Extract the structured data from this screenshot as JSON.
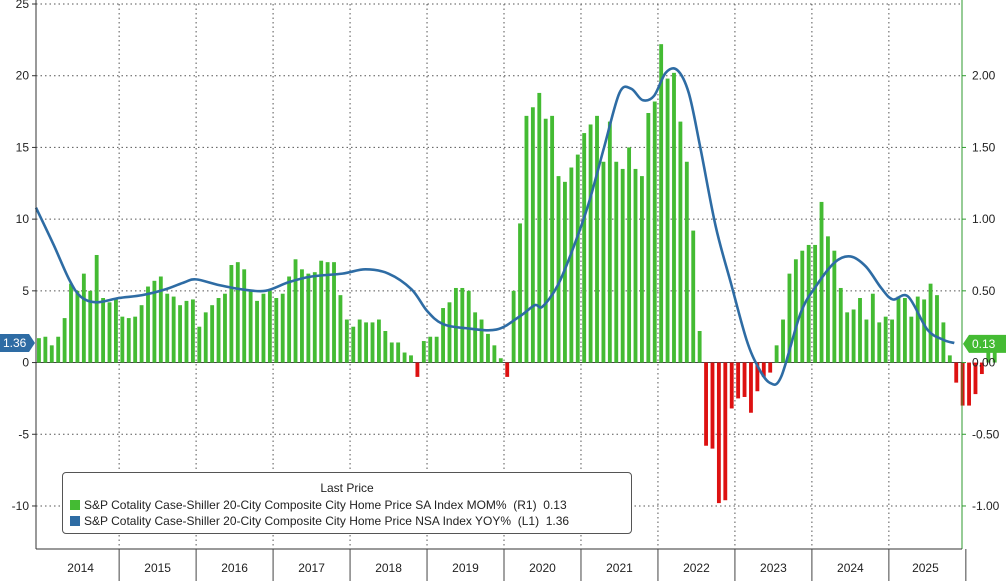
{
  "chart_data": {
    "type": "bar+line",
    "legend": {
      "title": "Last Price",
      "entries": [
        {
          "name": "S&P Cotality Case-Shiller 20-City Composite City Home Price SA Index MOM%",
          "axis_tag": "(R1)",
          "last": "0.13",
          "color": "#44bb33"
        },
        {
          "name": "S&P Cotality Case-Shiller 20-City Composite City Home Price NSA Index YOY%",
          "axis_tag": "(L1)",
          "last": "1.36",
          "color": "#2e6ca4"
        }
      ]
    },
    "x_labels": [
      "2014",
      "2015",
      "2016",
      "2017",
      "2018",
      "2019",
      "2020",
      "2021",
      "2022",
      "2023",
      "2024",
      "2025"
    ],
    "left_axis": {
      "min": -13,
      "max": 25,
      "ticks": [
        "25",
        "20",
        "15",
        "10",
        "5",
        "0",
        "-5",
        "-10"
      ]
    },
    "right_axis": {
      "min": -1.3,
      "max": 2.5,
      "ticks": [
        "2.00",
        "1.50",
        "1.00",
        "0.50",
        "0.00",
        "-0.50",
        "-1.00"
      ]
    },
    "last_labels": {
      "left": "1.36",
      "right": "0.13"
    },
    "colors": {
      "positive": "#44bb33",
      "negative": "#dd1111",
      "line": "#2e6ca4",
      "label_bg": "#2e6ca4",
      "label_bg_right": "#44bb33"
    },
    "series": [
      {
        "name": "S&P Cotality Case-Shiller 20-City Composite City Home Price SA Index MOM%",
        "axis": "right",
        "start": "2013-12",
        "values": [
          0.17,
          0.18,
          0.12,
          0.18,
          0.31,
          0.55,
          0.5,
          0.62,
          0.5,
          0.75,
          0.45,
          0.42,
          0.45,
          0.32,
          0.31,
          0.32,
          0.4,
          0.53,
          0.57,
          0.6,
          0.48,
          0.46,
          0.4,
          0.43,
          0.44,
          0.25,
          0.35,
          0.4,
          0.45,
          0.48,
          0.68,
          0.7,
          0.65,
          0.5,
          0.43,
          0.48,
          0.5,
          0.45,
          0.48,
          0.6,
          0.72,
          0.65,
          0.62,
          0.63,
          0.71,
          0.7,
          0.7,
          0.47,
          0.3,
          0.25,
          0.3,
          0.28,
          0.28,
          0.3,
          0.22,
          0.14,
          0.14,
          0.07,
          0.05,
          -0.1,
          0.15,
          0.18,
          0.18,
          0.38,
          0.42,
          0.52,
          0.52,
          0.5,
          0.35,
          0.3,
          0.2,
          0.12,
          0.03,
          -0.1,
          0.5,
          0.97,
          1.72,
          1.78,
          1.88,
          1.7,
          1.72,
          1.3,
          1.26,
          1.36,
          1.45,
          1.6,
          1.66,
          1.72,
          1.4,
          1.68,
          1.4,
          1.35,
          1.5,
          1.35,
          1.3,
          1.74,
          1.82,
          2.22,
          1.98,
          2.02,
          1.68,
          1.4,
          0.92,
          0.22,
          -0.58,
          -0.6,
          -0.98,
          -0.96,
          -0.32,
          -0.25,
          -0.24,
          -0.35,
          -0.2,
          -0.1,
          -0.07,
          0.12,
          0.3,
          0.62,
          0.72,
          0.78,
          0.82,
          0.82,
          1.12,
          0.88,
          0.78,
          0.52,
          0.35,
          0.37,
          0.45,
          0.3,
          0.48,
          0.28,
          0.32,
          0.3,
          0.46,
          0.45,
          0.32,
          0.46,
          0.44,
          0.55,
          0.47,
          0.28,
          0.05,
          -0.14,
          -0.3,
          -0.3,
          -0.22,
          -0.08,
          0.13,
          0.13
        ]
      },
      {
        "name": "S&P Cotality Case-Shiller 20-City Composite City Home Price NSA Index YOY%",
        "axis": "left",
        "start": "2013-12",
        "points": [
          [
            2013.92,
            10.8
          ],
          [
            2014.15,
            8.2
          ],
          [
            2014.35,
            5.8
          ],
          [
            2014.5,
            4.6
          ],
          [
            2014.7,
            4.2
          ],
          [
            2015.0,
            4.5
          ],
          [
            2015.3,
            4.7
          ],
          [
            2015.6,
            5.1
          ],
          [
            2015.85,
            5.6
          ],
          [
            2016.0,
            5.8
          ],
          [
            2016.3,
            5.4
          ],
          [
            2016.6,
            5.1
          ],
          [
            2016.9,
            5.0
          ],
          [
            2017.2,
            5.6
          ],
          [
            2017.5,
            6.0
          ],
          [
            2017.9,
            6.2
          ],
          [
            2018.2,
            6.5
          ],
          [
            2018.5,
            6.2
          ],
          [
            2018.8,
            5.1
          ],
          [
            2019.0,
            3.6
          ],
          [
            2019.2,
            2.7
          ],
          [
            2019.5,
            2.4
          ],
          [
            2019.9,
            2.3
          ],
          [
            2020.2,
            3.2
          ],
          [
            2020.4,
            4.0
          ],
          [
            2020.5,
            3.9
          ],
          [
            2020.7,
            5.4
          ],
          [
            2020.9,
            8.0
          ],
          [
            2021.1,
            11.1
          ],
          [
            2021.3,
            15.0
          ],
          [
            2021.5,
            18.8
          ],
          [
            2021.65,
            19.1
          ],
          [
            2021.8,
            18.3
          ],
          [
            2021.95,
            18.6
          ],
          [
            2022.1,
            20.2
          ],
          [
            2022.25,
            20.4
          ],
          [
            2022.4,
            18.8
          ],
          [
            2022.55,
            15.0
          ],
          [
            2022.75,
            9.5
          ],
          [
            2022.95,
            5.5
          ],
          [
            2023.15,
            1.6
          ],
          [
            2023.3,
            -0.3
          ],
          [
            2023.45,
            -1.4
          ],
          [
            2023.6,
            -1.0
          ],
          [
            2023.85,
            3.4
          ],
          [
            2024.05,
            5.3
          ],
          [
            2024.3,
            7.0
          ],
          [
            2024.5,
            7.4
          ],
          [
            2024.7,
            6.7
          ],
          [
            2024.9,
            5.2
          ],
          [
            2025.05,
            4.4
          ],
          [
            2025.25,
            4.6
          ],
          [
            2025.5,
            2.3
          ],
          [
            2025.7,
            1.6
          ],
          [
            2025.85,
            1.36
          ]
        ]
      }
    ]
  }
}
